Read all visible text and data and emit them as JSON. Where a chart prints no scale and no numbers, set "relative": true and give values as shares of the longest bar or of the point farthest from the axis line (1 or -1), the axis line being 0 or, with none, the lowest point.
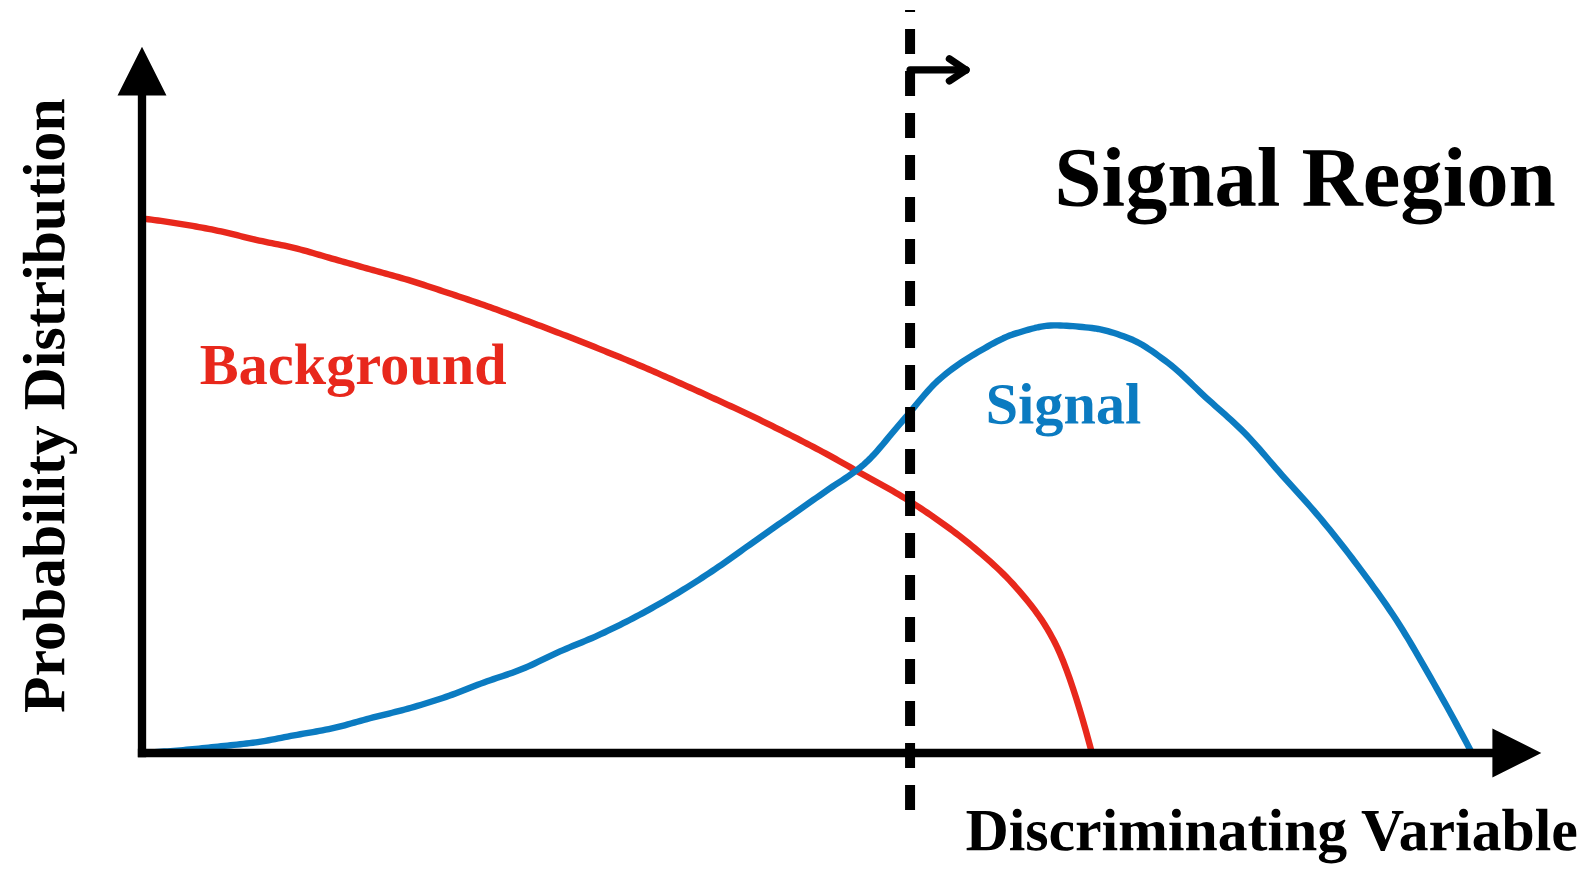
{
  "chart_data": {
    "type": "line",
    "relative": true,
    "xlabel": "Discriminating Variable",
    "ylabel": "Probability Distribution",
    "categories": [
      null,
      null,
      null,
      null,
      null,
      null,
      null,
      null,
      null,
      null,
      null,
      null,
      null,
      null,
      null,
      null,
      null,
      null,
      null,
      null,
      null,
      null,
      null,
      null,
      null,
      null,
      null,
      null,
      null,
      null,
      null,
      null,
      null,
      null,
      null,
      null
    ],
    "series": [
      {
        "name": "Background",
        "color": "#e8281c",
        "values": [
          1.0,
          0.99,
          0.977,
          0.96,
          0.945,
          0.925,
          0.905,
          0.885,
          0.862,
          0.838,
          0.812,
          0.785,
          0.757,
          0.728,
          0.697,
          0.665,
          0.632,
          0.597,
          0.56,
          0.52,
          0.48,
          0.433,
          0.378,
          0.31,
          0.21,
          0,
          null,
          null,
          null,
          null,
          null,
          null,
          null,
          null,
          null,
          null
        ]
      },
      {
        "name": "Signal",
        "color": "#0b7bc1",
        "values": [
          0,
          0.005,
          0.012,
          0.02,
          0.033,
          0.046,
          0.065,
          0.083,
          0.105,
          0.132,
          0.157,
          0.19,
          0.22,
          0.255,
          0.295,
          0.34,
          0.39,
          0.44,
          0.49,
          0.54,
          0.62,
          0.7,
          0.75,
          0.785,
          0.8,
          0.795,
          0.775,
          0.73,
          0.665,
          0.6,
          0.52,
          0.44,
          0.35,
          0.25,
          0.13,
          0
        ]
      }
    ],
    "annotations": [
      "Signal Region"
    ]
  }
}
